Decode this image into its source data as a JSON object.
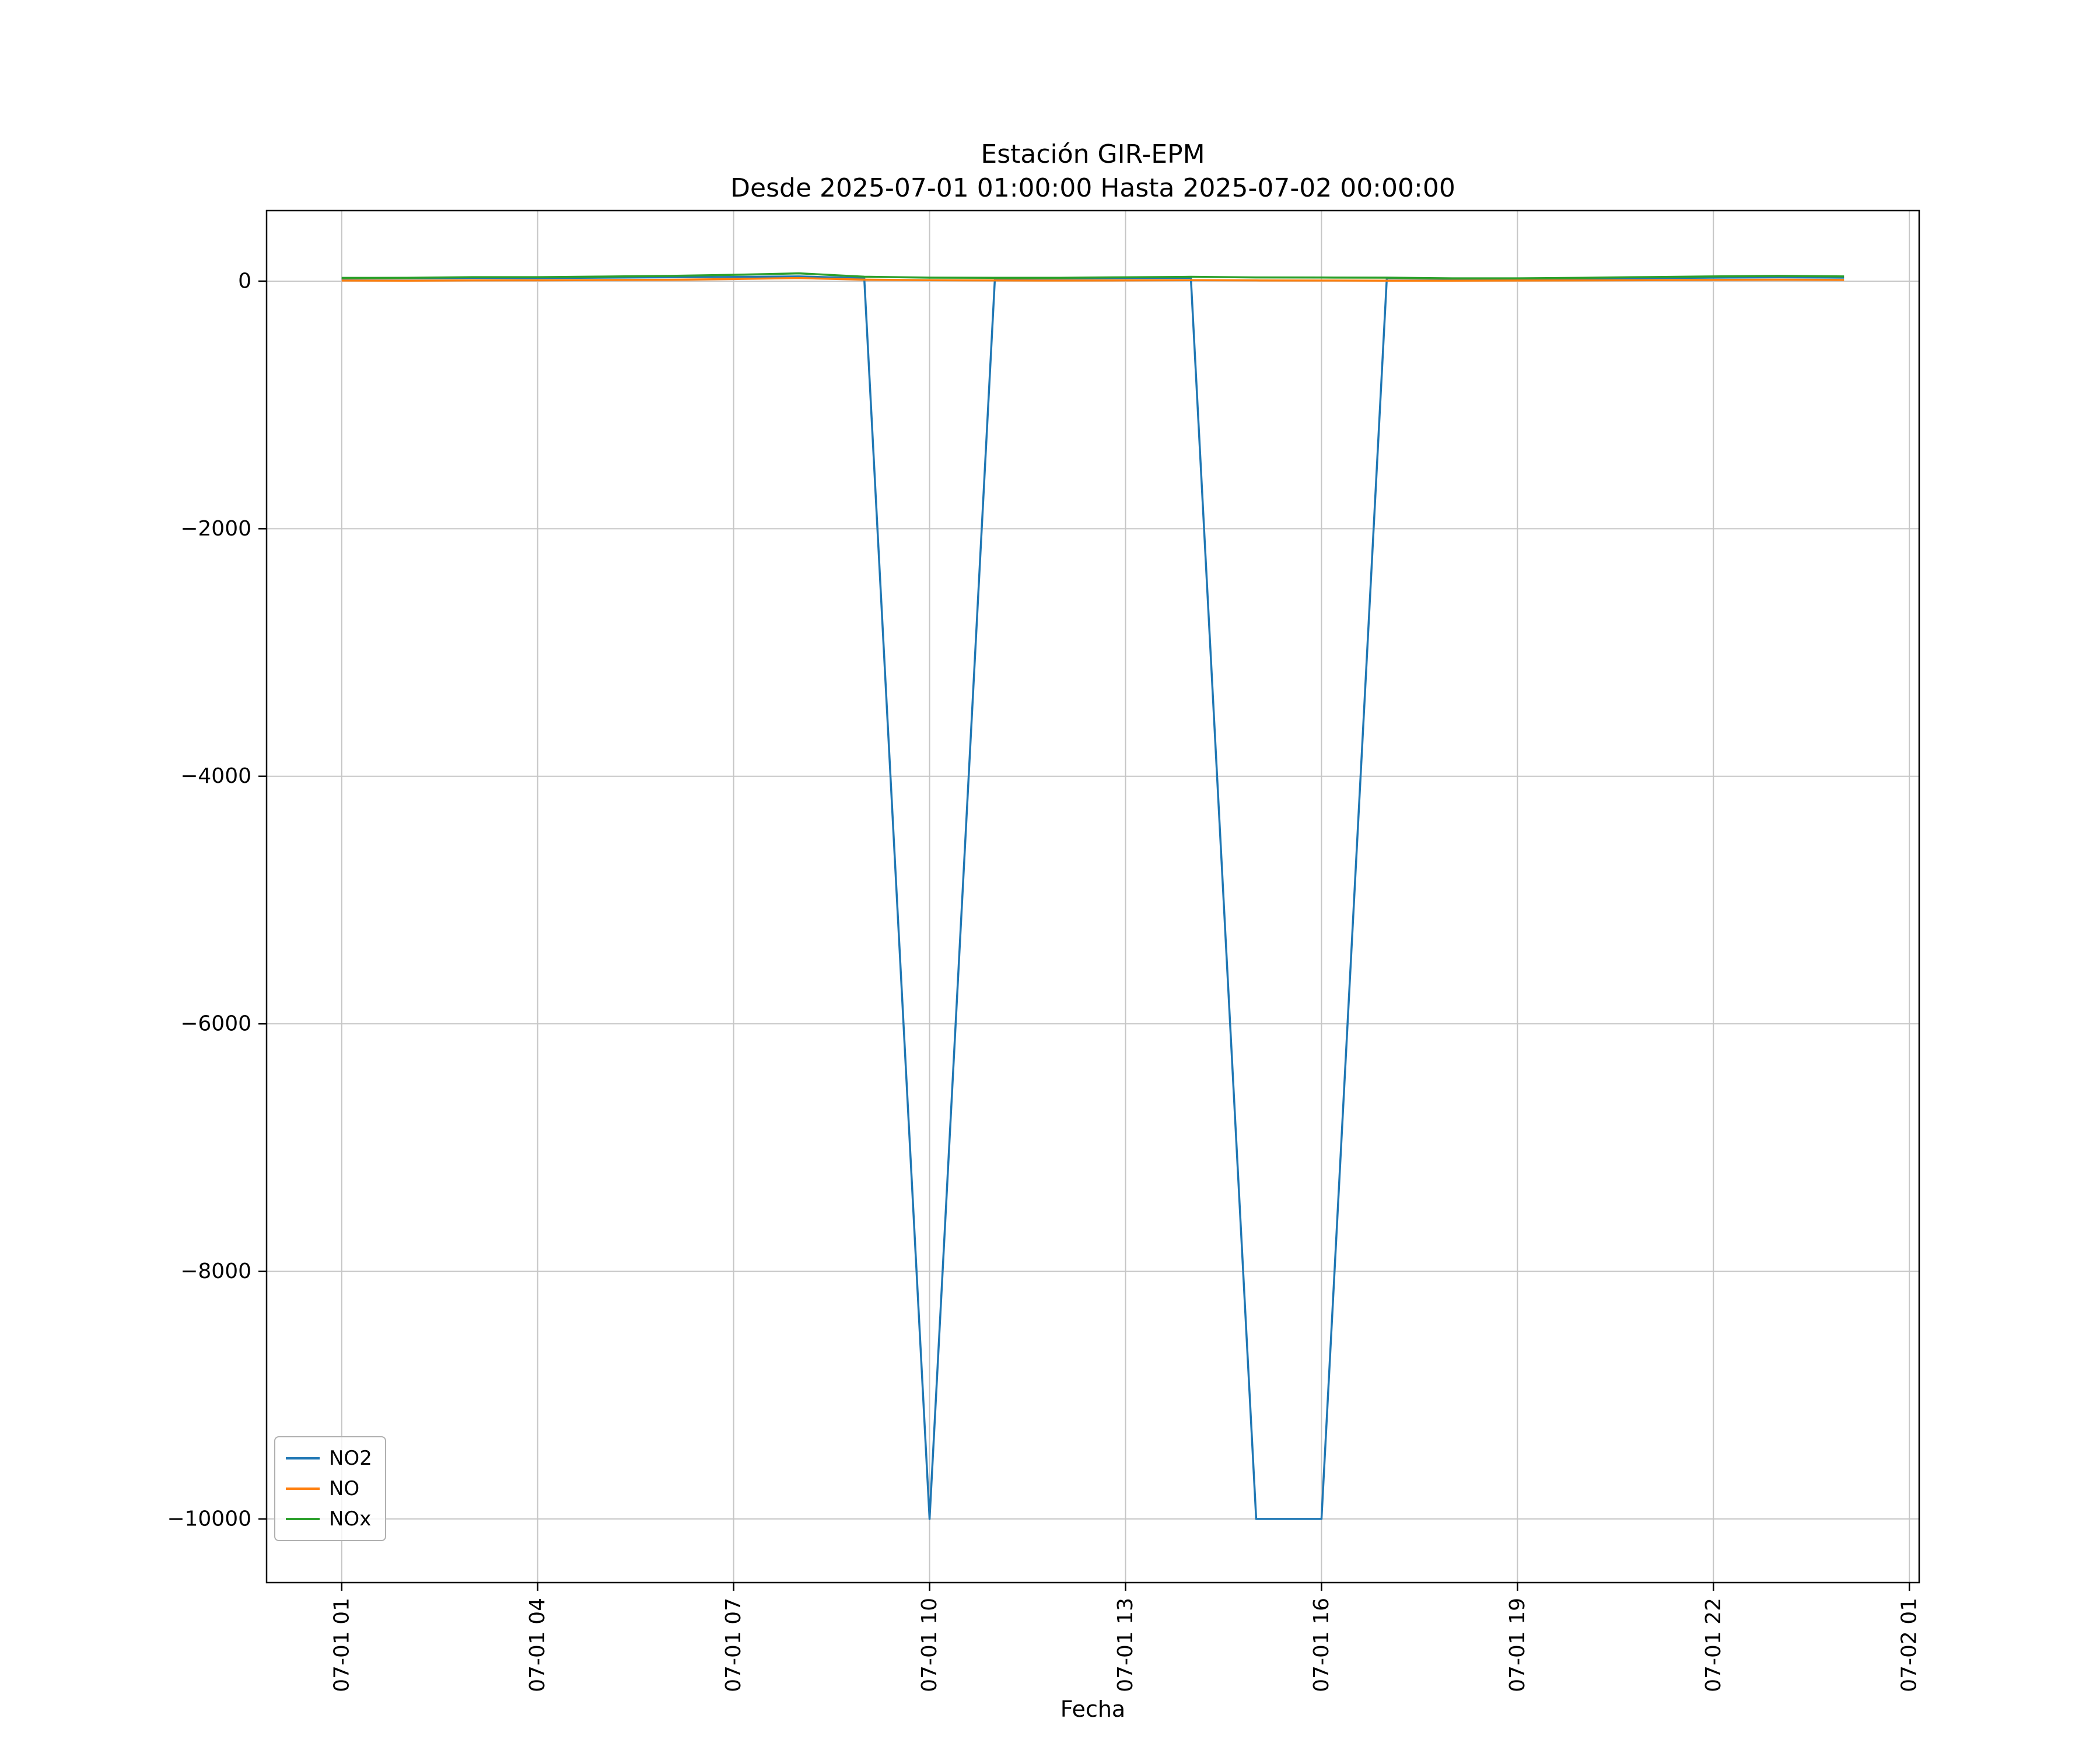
{
  "chart_data": {
    "type": "line",
    "title": "Estación GIR-EPM",
    "subtitle": "Desde 2025-07-01 01:00:00 Hasta 2025-07-02 00:00:00",
    "xlabel": "Fecha",
    "ylabel": "",
    "grid": true,
    "legend_position": "lower left",
    "x_hours": [
      1,
      2,
      3,
      4,
      5,
      6,
      7,
      8,
      9,
      10,
      11,
      12,
      13,
      14,
      15,
      16,
      17,
      18,
      19,
      20,
      21,
      22,
      23,
      24
    ],
    "x_tick_hours": [
      1,
      4,
      7,
      10,
      13,
      16,
      19,
      22,
      25
    ],
    "x_tick_labels": [
      "07-01 01",
      "07-01 04",
      "07-01 07",
      "07-01 10",
      "07-01 13",
      "07-01 16",
      "07-01 19",
      "07-01 22",
      "07-02 01"
    ],
    "y_ticks": [
      0,
      -2000,
      -4000,
      -6000,
      -8000,
      -10000
    ],
    "y_tick_labels": [
      "0",
      "−2000",
      "−4000",
      "−6000",
      "−8000",
      "−10000"
    ],
    "xlim": [
      -0.15,
      25.15
    ],
    "ylim": [
      -10514,
      570
    ],
    "series": [
      {
        "name": "NO2",
        "color": "#1f77b4",
        "values": [
          21,
          23,
          26,
          25,
          28,
          31,
          34,
          38,
          24,
          -10000,
          21,
          22,
          25,
          27,
          -10000,
          -10000,
          24,
          19,
          18,
          21,
          25,
          28,
          31,
          28
        ]
      },
      {
        "name": "NO",
        "color": "#ff7f0e",
        "values": [
          5,
          4,
          6,
          7,
          9,
          11,
          17,
          25,
          12,
          8,
          6,
          5,
          6,
          8,
          6,
          5,
          4,
          4,
          5,
          6,
          8,
          10,
          12,
          10
        ]
      },
      {
        "name": "NOx",
        "color": "#2ca02c",
        "values": [
          26,
          27,
          32,
          32,
          37,
          42,
          51,
          63,
          36,
          28,
          27,
          27,
          31,
          35,
          30,
          29,
          28,
          23,
          23,
          27,
          33,
          38,
          43,
          38
        ]
      }
    ]
  }
}
